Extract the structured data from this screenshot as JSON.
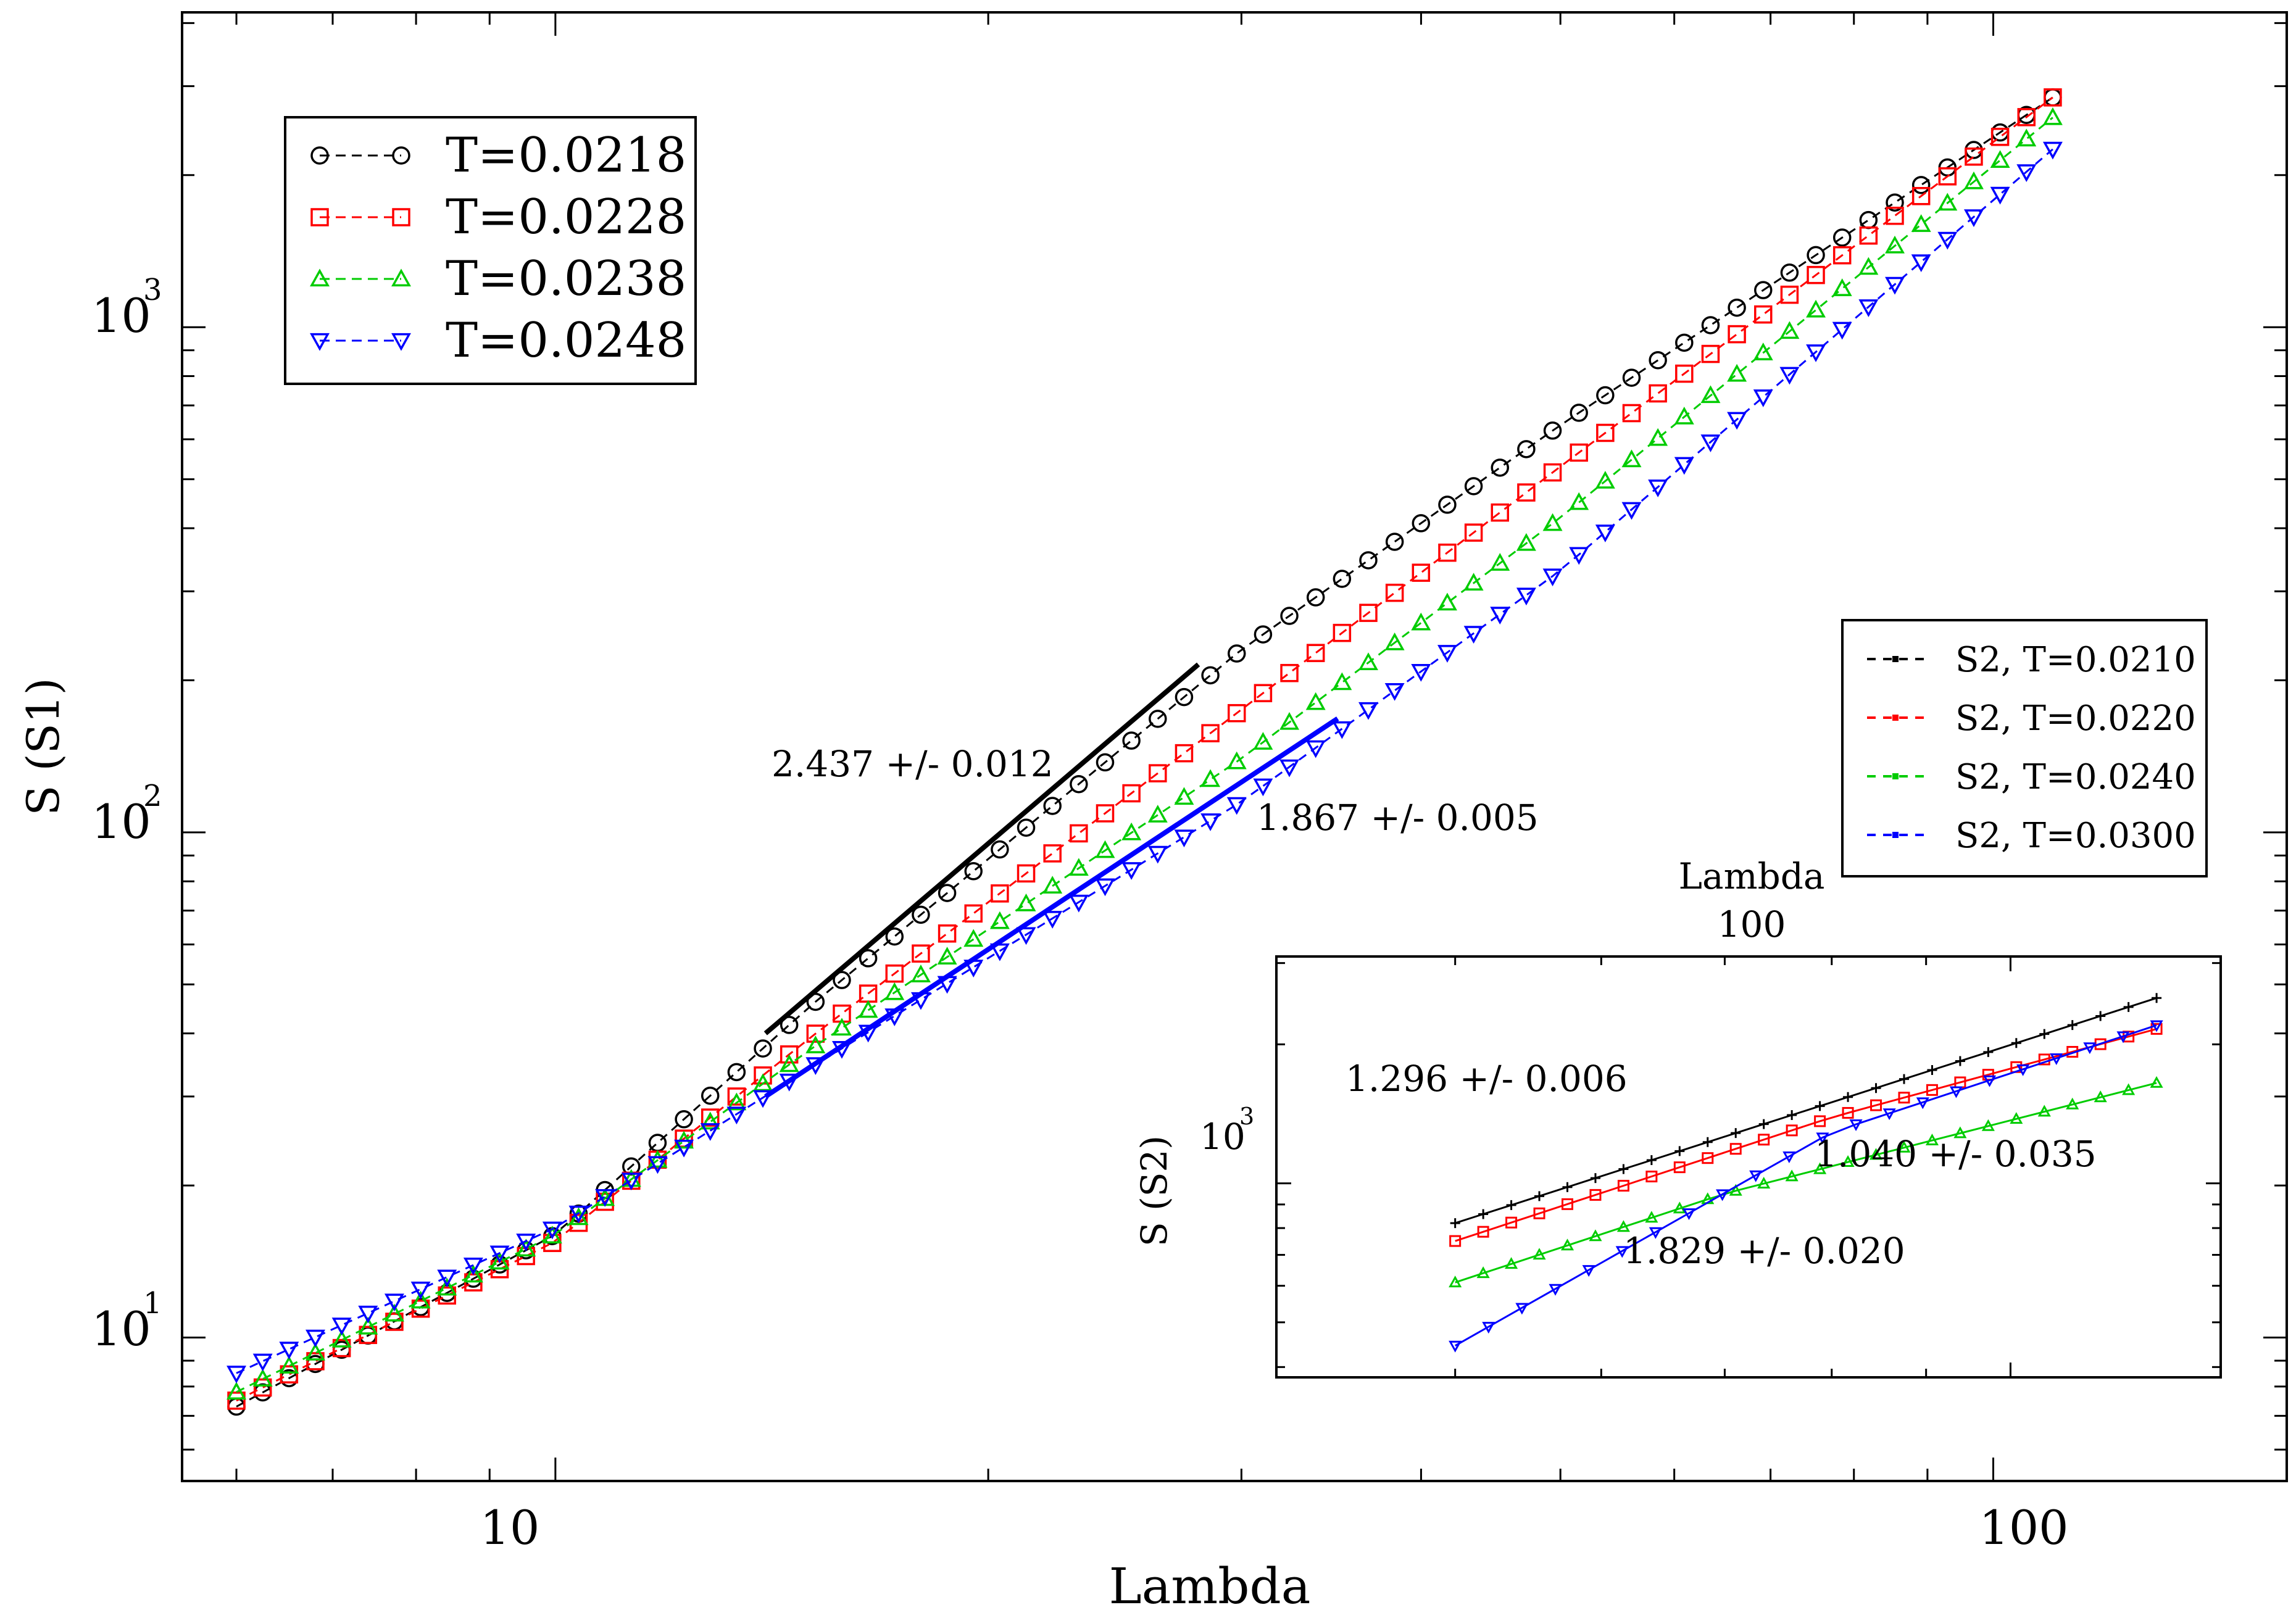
{
  "chart_data": [
    {
      "type": "scatter",
      "id": "main",
      "xscale": "log",
      "yscale": "log",
      "xlabel": "Lambda",
      "ylabel": "S (S1)",
      "xlim": [
        5.5,
        160
      ],
      "ylim": [
        5.2,
        4200
      ],
      "x_ticks": [
        {
          "value": 10,
          "label": "10"
        },
        {
          "value": 100,
          "label": "100"
        }
      ],
      "y_ticks": [
        {
          "value": 10,
          "label": "10",
          "exp": "1"
        },
        {
          "value": 100,
          "label": "10",
          "exp": "2"
        },
        {
          "value": 1000,
          "label": "10",
          "exp": "3"
        }
      ],
      "legend": {
        "position": "top-left",
        "entries": [
          {
            "label": "T=0.0218",
            "color": "#000000",
            "marker": "circle"
          },
          {
            "label": "T=0.0228",
            "color": "#ff0000",
            "marker": "square"
          },
          {
            "label": "T=0.0238",
            "color": "#00cc00",
            "marker": "triangle-up"
          },
          {
            "label": "T=0.0248",
            "color": "#0000ff",
            "marker": "triangle-down"
          }
        ]
      },
      "series": [
        {
          "name": "T=0.0218",
          "color": "#000000",
          "marker": "circle",
          "x_range": [
            6,
            110
          ],
          "points": 70,
          "anchors": [
            [
              6,
              7.3
            ],
            [
              10,
              16
            ],
            [
              15,
              45
            ],
            [
              30,
              230
            ],
            [
              50,
              640
            ],
            [
              110,
              2850
            ]
          ]
        },
        {
          "name": "T=0.0228",
          "color": "#ff0000",
          "marker": "square",
          "x_range": [
            6,
            110
          ],
          "points": 70,
          "anchors": [
            [
              6,
              7.5
            ],
            [
              10,
              15.5
            ],
            [
              15,
              39
            ],
            [
              30,
              175
            ],
            [
              50,
              530
            ],
            [
              110,
              2850
            ]
          ]
        },
        {
          "name": "T=0.0238",
          "color": "#00cc00",
          "marker": "triangle-up",
          "x_range": [
            6,
            110
          ],
          "points": 70,
          "anchors": [
            [
              6,
              7.8
            ],
            [
              10,
              16
            ],
            [
              15,
              37
            ],
            [
              30,
              140
            ],
            [
              50,
              420
            ],
            [
              110,
              2600
            ]
          ]
        },
        {
          "name": "T=0.0248",
          "color": "#0000ff",
          "marker": "triangle-down",
          "x_range": [
            6,
            110
          ],
          "points": 70,
          "anchors": [
            [
              6,
              8.5
            ],
            [
              10,
              16.5
            ],
            [
              15,
              34
            ],
            [
              30,
              115
            ],
            [
              50,
              330
            ],
            [
              110,
              2250
            ]
          ]
        }
      ],
      "fits": [
        {
          "color": "#000000",
          "slope_label": "2.437 +/- 0.012",
          "x_range": [
            14,
            28
          ],
          "anchors": [
            [
              14,
              40
            ],
            [
              28,
              215
            ]
          ]
        },
        {
          "color": "#0000ff",
          "slope_label": "1.867 +/- 0.005",
          "x_range": [
            14,
            35
          ],
          "anchors": [
            [
              14,
              30
            ],
            [
              35,
              168
            ]
          ]
        }
      ]
    },
    {
      "type": "line",
      "id": "inset",
      "xscale": "log",
      "yscale": "log",
      "xlabel": "Lambda",
      "ylabel": "S (S2)",
      "xlim": [
        40,
        130
      ],
      "ylim": [
        380,
        3100
      ],
      "x_ticks": [
        {
          "value": 100,
          "label": "100"
        }
      ],
      "y_ticks": [
        {
          "value": 1000,
          "label": "10",
          "exp": "3"
        }
      ],
      "legend": {
        "position": "right",
        "entries": [
          {
            "label": "S2, T=0.0210",
            "color": "#000000"
          },
          {
            "label": "S2, T=0.0220",
            "color": "#ff0000"
          },
          {
            "label": "S2, T=0.0240",
            "color": "#00cc00"
          },
          {
            "label": "S2, T=0.0300",
            "color": "#0000ff"
          }
        ]
      },
      "series": [
        {
          "name": "S2, T=0.0210",
          "color": "#000000",
          "marker": "plus",
          "x_range": [
            50,
            120
          ],
          "points": 26,
          "anchors": [
            [
              50,
              820
            ],
            [
              120,
              2520
            ]
          ]
        },
        {
          "name": "S2, T=0.0220",
          "color": "#ff0000",
          "marker": "square",
          "x_range": [
            50,
            120
          ],
          "points": 26,
          "anchors": [
            [
              50,
              750
            ],
            [
              80,
              1390
            ],
            [
              120,
              2160
            ]
          ]
        },
        {
          "name": "S2, T=0.0240",
          "color": "#00cc00",
          "marker": "triangle-up",
          "x_range": [
            50,
            120
          ],
          "points": 26,
          "anchors": [
            [
              50,
              610
            ],
            [
              70,
              950
            ],
            [
              120,
              1650
            ]
          ]
        },
        {
          "name": "S2, T=0.0300",
          "color": "#0000ff",
          "marker": "triangle-down",
          "x_range": [
            50,
            120
          ],
          "points": 22,
          "anchors": [
            [
              50,
              445
            ],
            [
              80,
              1290
            ],
            [
              120,
              2200
            ]
          ]
        }
      ],
      "annotations": [
        {
          "text": "1.296 +/- 0.006",
          "color": "#000000"
        },
        {
          "text": "1.040 +/- 0.035",
          "color": "#000000"
        },
        {
          "text": "1.829 +/- 0.020",
          "color": "#000000"
        }
      ]
    }
  ]
}
